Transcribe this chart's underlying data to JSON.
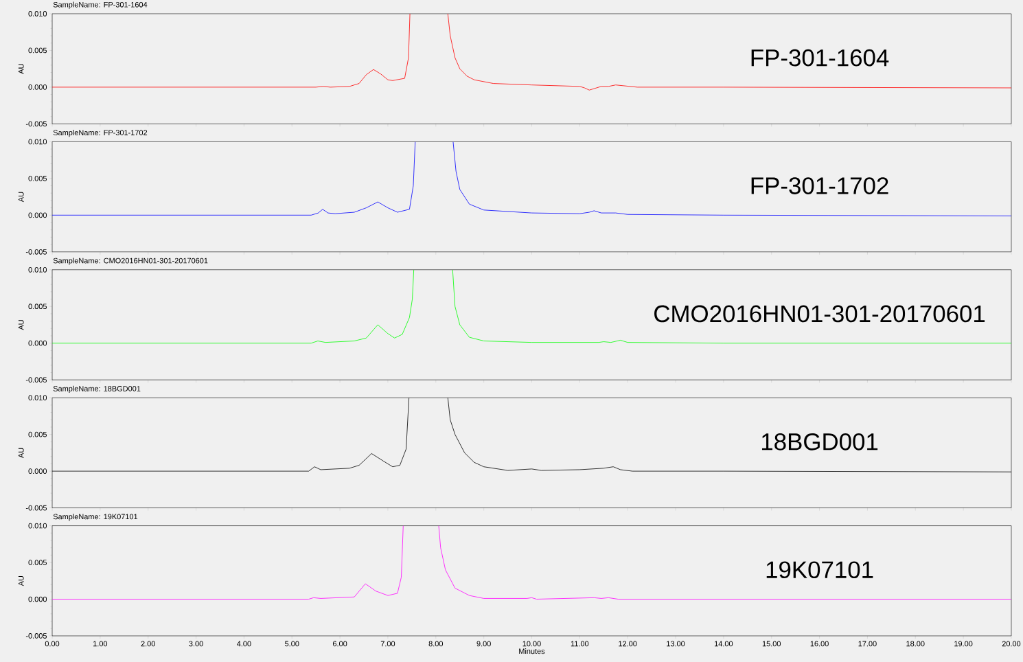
{
  "chart_data": [
    {
      "type": "line",
      "title": "SampleName: FP-301-1604",
      "ylabel": "AU",
      "annotations": [
        "FP-301-1604"
      ],
      "tick_labels": "y",
      "x": [
        0,
        5.5,
        5.65,
        5.8,
        6.2,
        6.4,
        6.55,
        6.7,
        6.85,
        7.0,
        7.1,
        7.35,
        7.43,
        7.46,
        7.8,
        8.25,
        8.3,
        8.4,
        8.5,
        8.65,
        8.8,
        9.2,
        10,
        11,
        11.1,
        11.2,
        11.3,
        11.45,
        11.6,
        11.75,
        11.9,
        12.2,
        14,
        20
      ],
      "series": [
        {
          "color": "#ff0000",
          "values": [
            0,
            0,
            0.0001,
            0,
            0.0001,
            0.0005,
            0.0017,
            0.0024,
            0.0018,
            0.001,
            0.0009,
            0.0012,
            0.004,
            0.01,
            null,
            0.01,
            0.007,
            0.004,
            0.0025,
            0.0015,
            0.001,
            0.0005,
            0.0003,
            0.0001,
            -0.0001,
            -0.0004,
            -0.0002,
            0.0001,
            0.0001,
            0.0003,
            0.0002,
            0,
            0,
            -0.0001
          ]
        }
      ],
      "xlim": [
        0,
        20
      ],
      "ylim": [
        -0.005,
        0.01
      ],
      "xticks": [
        0,
        1,
        2,
        3,
        4,
        5,
        6,
        7,
        8,
        9,
        10,
        11,
        12,
        13,
        14,
        15,
        16,
        17,
        18,
        19,
        20
      ],
      "yticks": [
        {
          "value": -0.005,
          "label": "-0.005"
        },
        {
          "value": 0,
          "label": "0.000"
        },
        {
          "value": 0.005,
          "label": "0.005"
        },
        {
          "value": 0.01,
          "label": "0.010"
        }
      ]
    },
    {
      "type": "line",
      "title": "SampleName: FP-301-1702",
      "ylabel": "AU",
      "annotations": [
        "FP-301-1702"
      ],
      "tick_labels": "y",
      "x": [
        0,
        5.4,
        5.55,
        5.64,
        5.75,
        5.9,
        6.3,
        6.55,
        6.79,
        7.0,
        7.2,
        7.45,
        7.53,
        7.57,
        8.0,
        8.36,
        8.42,
        8.5,
        8.7,
        9.0,
        10,
        11,
        11.2,
        11.3,
        11.45,
        11.75,
        12,
        14,
        20
      ],
      "series": [
        {
          "color": "#0000ff",
          "values": [
            0,
            0,
            0.0003,
            0.0008,
            0.0003,
            0.0002,
            0.0004,
            0.001,
            0.0018,
            0.001,
            0.0004,
            0.0008,
            0.004,
            0.01,
            null,
            0.01,
            0.006,
            0.0035,
            0.0015,
            0.0007,
            0.0003,
            0.0002,
            0.0004,
            0.0006,
            0.0003,
            0.0003,
            0.0001,
            0,
            -0.0001
          ]
        }
      ],
      "xlim": [
        0,
        20
      ],
      "ylim": [
        -0.005,
        0.01
      ],
      "xticks": [
        0,
        1,
        2,
        3,
        4,
        5,
        6,
        7,
        8,
        9,
        10,
        11,
        12,
        13,
        14,
        15,
        16,
        17,
        18,
        19,
        20
      ],
      "yticks": [
        {
          "value": -0.005,
          "label": "-0.005"
        },
        {
          "value": 0,
          "label": "0.000"
        },
        {
          "value": 0.005,
          "label": "0.005"
        },
        {
          "value": 0.01,
          "label": "0.010"
        }
      ]
    },
    {
      "type": "line",
      "title": "SampleName: CMO2016HN01-301-20170601",
      "ylabel": "AU",
      "annotations": [
        "CMO2016HN01-301-20170601"
      ],
      "tick_labels": "y",
      "x": [
        0,
        5.4,
        5.54,
        5.7,
        6.3,
        6.55,
        6.79,
        7.0,
        7.14,
        7.3,
        7.45,
        7.51,
        7.54,
        8.0,
        8.35,
        8.4,
        8.5,
        8.7,
        9.0,
        10,
        11.4,
        11.5,
        11.65,
        11.85,
        12.0,
        14,
        20
      ],
      "series": [
        {
          "color": "#00ff00",
          "values": [
            0,
            0,
            0.0003,
            0.0001,
            0.0003,
            0.0007,
            0.0025,
            0.0013,
            0.0007,
            0.0012,
            0.0035,
            0.006,
            0.01,
            null,
            0.01,
            0.005,
            0.0025,
            0.0008,
            0.0003,
            0.0001,
            0.0001,
            0.0002,
            0.0001,
            0.0004,
            0.0001,
            0,
            0
          ]
        }
      ],
      "xlim": [
        0,
        20
      ],
      "ylim": [
        -0.005,
        0.01
      ],
      "xticks": [
        0,
        1,
        2,
        3,
        4,
        5,
        6,
        7,
        8,
        9,
        10,
        11,
        12,
        13,
        14,
        15,
        16,
        17,
        18,
        19,
        20
      ],
      "yticks": [
        {
          "value": -0.005,
          "label": "-0.005"
        },
        {
          "value": 0,
          "label": "0.000"
        },
        {
          "value": 0.005,
          "label": "0.005"
        },
        {
          "value": 0.01,
          "label": "0.010"
        }
      ]
    },
    {
      "type": "line",
      "title": "SampleName: 18BGD001",
      "ylabel": "AU",
      "annotations": [
        "18BGD001"
      ],
      "tick_labels": "y",
      "x": [
        0,
        5.35,
        5.47,
        5.6,
        6.2,
        6.4,
        6.66,
        6.9,
        7.1,
        7.25,
        7.38,
        7.44,
        7.8,
        8.25,
        8.3,
        8.4,
        8.6,
        8.8,
        9.0,
        9.5,
        10,
        10.2,
        11,
        11.5,
        11.7,
        11.85,
        12.1,
        14,
        20
      ],
      "series": [
        {
          "color": "#000000",
          "values": [
            0,
            0,
            0.0006,
            0.0002,
            0.0004,
            0.0008,
            0.0024,
            0.0014,
            0.0006,
            0.0008,
            0.003,
            0.01,
            null,
            0.01,
            0.007,
            0.005,
            0.0025,
            0.0012,
            0.0006,
            0.0001,
            0.0003,
            0.0001,
            0.0002,
            0.0004,
            0.0006,
            0.0002,
            0,
            0,
            -0.0001
          ]
        }
      ],
      "xlim": [
        0,
        20
      ],
      "ylim": [
        -0.005,
        0.01
      ],
      "xticks": [
        0,
        1,
        2,
        3,
        4,
        5,
        6,
        7,
        8,
        9,
        10,
        11,
        12,
        13,
        14,
        15,
        16,
        17,
        18,
        19,
        20
      ],
      "yticks": [
        {
          "value": -0.005,
          "label": "-0.005"
        },
        {
          "value": 0,
          "label": "0.000"
        },
        {
          "value": 0.005,
          "label": "0.005"
        },
        {
          "value": 0.01,
          "label": "0.010"
        }
      ]
    },
    {
      "type": "line",
      "title": "SampleName: 19K07101",
      "ylabel": "AU",
      "xlabel": "Minutes",
      "annotations": [
        "19K07101"
      ],
      "x": [
        0,
        5.35,
        5.45,
        5.6,
        6.3,
        6.53,
        6.75,
        7.0,
        7.2,
        7.28,
        7.32,
        7.7,
        8.06,
        8.1,
        8.2,
        8.4,
        8.7,
        9.0,
        9.9,
        10.0,
        10.1,
        11.3,
        11.45,
        11.6,
        11.8,
        20
      ],
      "series": [
        {
          "color": "#ff00ff",
          "values": [
            0,
            0,
            0.0002,
            0.0001,
            0.0003,
            0.0021,
            0.0011,
            0.0005,
            0.0008,
            0.003,
            0.01,
            null,
            0.01,
            0.007,
            0.004,
            0.0015,
            0.0005,
            0.0001,
            0.0001,
            0.0002,
            0,
            0.0002,
            0.0001,
            0.0002,
            0,
            0
          ]
        }
      ],
      "xlim": [
        0,
        20
      ],
      "ylim": [
        -0.005,
        0.01
      ],
      "xticks": [
        {
          "value": 0,
          "label": "0.00"
        },
        {
          "value": 1,
          "label": "1.00"
        },
        {
          "value": 2,
          "label": "2.00"
        },
        {
          "value": 3,
          "label": "3.00"
        },
        {
          "value": 4,
          "label": "4.00"
        },
        {
          "value": 5,
          "label": "5.00"
        },
        {
          "value": 6,
          "label": "6.00"
        },
        {
          "value": 7,
          "label": "7.00"
        },
        {
          "value": 8,
          "label": "8.00"
        },
        {
          "value": 9,
          "label": "9.00"
        },
        {
          "value": 10,
          "label": "10.00"
        },
        {
          "value": 11,
          "label": "11.00"
        },
        {
          "value": 12,
          "label": "12.00"
        },
        {
          "value": 13,
          "label": "13.00"
        },
        {
          "value": 14,
          "label": "14.00"
        },
        {
          "value": 15,
          "label": "15.00"
        },
        {
          "value": 16,
          "label": "16.00"
        },
        {
          "value": 17,
          "label": "17.00"
        },
        {
          "value": 18,
          "label": "18.00"
        },
        {
          "value": 19,
          "label": "19.00"
        },
        {
          "value": 20,
          "label": "20.00"
        }
      ],
      "yticks": [
        {
          "value": -0.005,
          "label": "-0.005"
        },
        {
          "value": 0,
          "label": "0.000"
        },
        {
          "value": 0.005,
          "label": "0.005"
        },
        {
          "value": 0.01,
          "label": "0.010"
        }
      ]
    }
  ]
}
